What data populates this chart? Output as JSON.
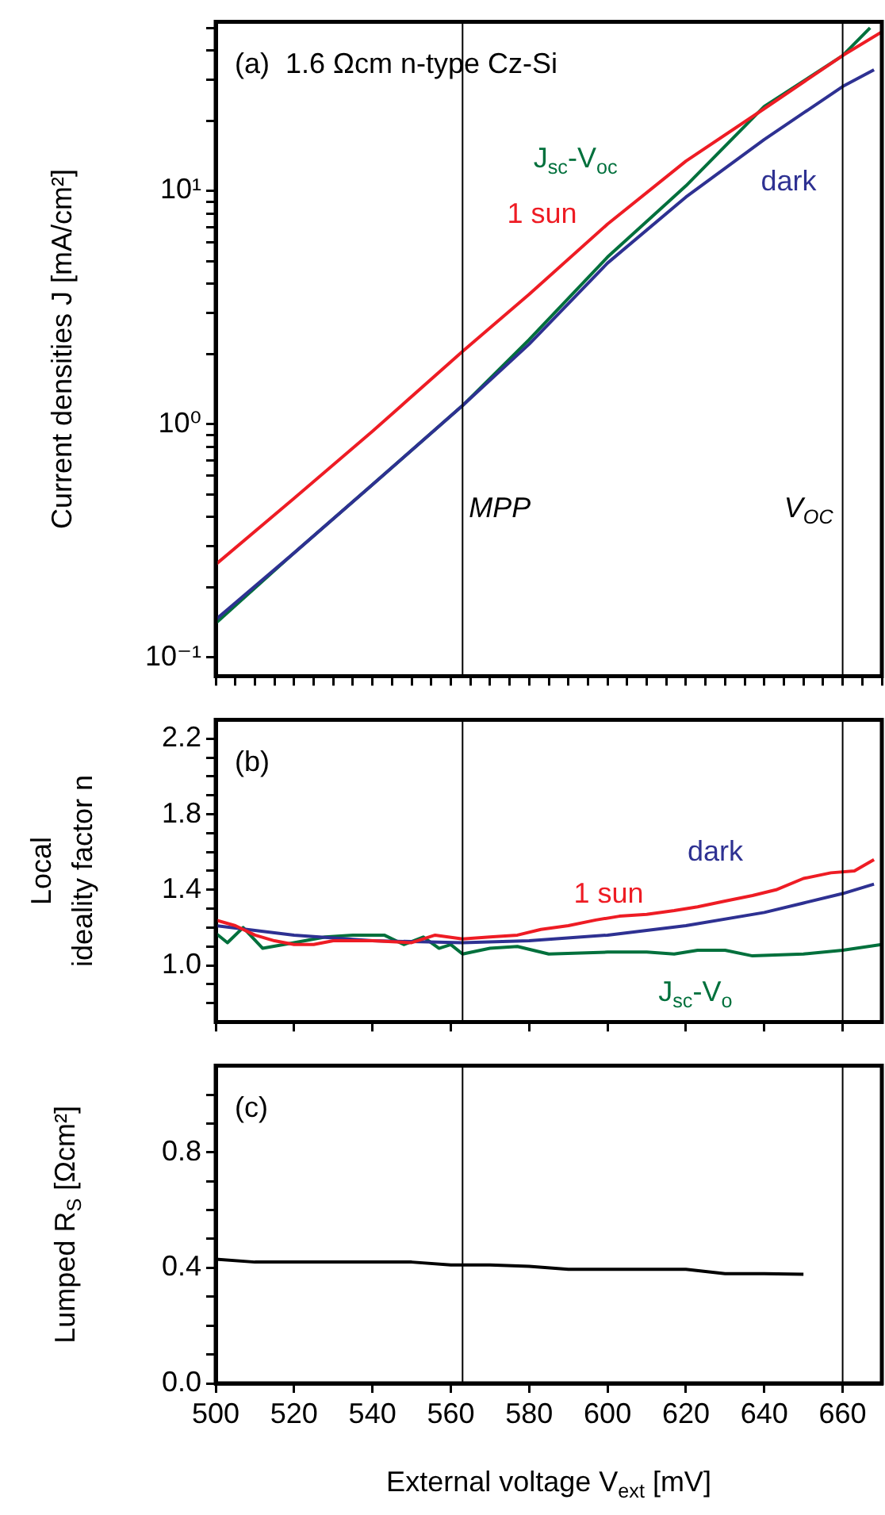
{
  "chart_data": [
    {
      "type": "line",
      "ylabel": "Current densities J [mA/cm²]",
      "annotations": [
        "(a)  1.6 Ωcm n-type Cz-Si"
      ],
      "xlim": [
        500,
        670
      ],
      "xticks": [
        500,
        {
          "value": 505,
          "label": null
        },
        {
          "value": 510,
          "label": null
        },
        {
          "value": 515,
          "label": null
        },
        520,
        {
          "value": 525,
          "label": null
        },
        {
          "value": 530,
          "label": null
        },
        {
          "value": 535,
          "label": null
        },
        540,
        {
          "value": 545,
          "label": null
        },
        {
          "value": 550,
          "label": null
        },
        {
          "value": 555,
          "label": null
        },
        560,
        {
          "value": 565,
          "label": null
        },
        {
          "value": 570,
          "label": null
        },
        {
          "value": 575,
          "label": null
        },
        580,
        {
          "value": 585,
          "label": null
        },
        {
          "value": 590,
          "label": null
        },
        {
          "value": 595,
          "label": null
        },
        600,
        {
          "value": 605,
          "label": null
        },
        {
          "value": 610,
          "label": null
        },
        {
          "value": 615,
          "label": null
        },
        620,
        {
          "value": 625,
          "label": null
        },
        {
          "value": 630,
          "label": null
        },
        {
          "value": 635,
          "label": null
        },
        640,
        {
          "value": 645,
          "label": null
        },
        {
          "value": 650,
          "label": null
        },
        {
          "value": 655,
          "label": null
        },
        660,
        {
          "value": 665,
          "label": null
        },
        {
          "value": 670,
          "label": null
        }
      ],
      "ylim": [
        0.083,
        53
      ],
      "yticks": [
        {
          "value": 0.1,
          "label": "10⁻¹"
        },
        {
          "value": 0.2,
          "label": null
        },
        {
          "value": 0.3,
          "label": null
        },
        {
          "value": 0.4,
          "label": null
        },
        {
          "value": 0.5,
          "label": null
        },
        {
          "value": 0.6,
          "label": null
        },
        {
          "value": 0.7,
          "label": null
        },
        {
          "value": 0.8,
          "label": null
        },
        {
          "value": 0.9,
          "label": null
        },
        {
          "value": 1,
          "label": "10⁰"
        },
        {
          "value": 2,
          "label": null
        },
        {
          "value": 3,
          "label": null
        },
        {
          "value": 4,
          "label": null
        },
        {
          "value": 5,
          "label": null
        },
        {
          "value": 6,
          "label": null
        },
        {
          "value": 7,
          "label": null
        },
        {
          "value": 8,
          "label": null
        },
        {
          "value": 9,
          "label": null
        },
        {
          "value": 10,
          "label": "10¹"
        },
        {
          "value": 20,
          "label": null
        },
        {
          "value": 30,
          "label": null
        },
        {
          "value": 40,
          "label": null
        },
        {
          "value": 50,
          "label": null
        }
      ],
      "log": "y",
      "tick_labels": "y",
      "grid": false,
      "legend": false,
      "marker": "none",
      "line_style": "solid",
      "ref_lines": [
        {
          "axis": "x",
          "value": 563,
          "label": "MPP",
          "color": "#000000"
        },
        {
          "axis": "x",
          "value": 660,
          "label": "V$_{OC}$",
          "color": "#000000"
        }
      ],
      "series": [
        {
          "name": "1 sun",
          "color": "#ee1c24",
          "x": [
            500,
            520,
            540,
            563,
            580,
            600,
            620,
            640,
            660,
            670
          ],
          "values": [
            0.25,
            0.48,
            0.93,
            2.05,
            3.6,
            7.2,
            13.4,
            22.5,
            38,
            48
          ]
        },
        {
          "name": "dark",
          "color": "#2e3192",
          "x": [
            500,
            520,
            540,
            563,
            580,
            600,
            620,
            640,
            660,
            668
          ],
          "values": [
            0.145,
            0.28,
            0.55,
            1.2,
            2.2,
            4.9,
            9.4,
            16.6,
            28,
            33
          ]
        },
        {
          "name": "J$_{sc}$-V$_{oc}$",
          "color": "#00703c",
          "x": [
            500,
            520,
            540,
            563,
            580,
            600,
            620,
            640,
            660,
            667
          ],
          "values": [
            0.14,
            0.28,
            0.55,
            1.2,
            2.3,
            5.2,
            10.5,
            23,
            38,
            50
          ]
        }
      ]
    },
    {
      "type": "line",
      "ylabel": "Local ideality factor n",
      "annotations": [
        "(b)"
      ],
      "xlim": [
        500,
        670
      ],
      "xticks": [
        500,
        520,
        540,
        560,
        580,
        600,
        620,
        640,
        660
      ],
      "ylim": [
        0.7,
        2.3
      ],
      "yticks": [
        {
          "value": 0.8,
          "label": null
        },
        {
          "value": 0.9,
          "label": null
        },
        {
          "value": 1,
          "label": "1.0"
        },
        {
          "value": 1.1,
          "label": null
        },
        {
          "value": 1.2,
          "label": null
        },
        {
          "value": 1.3,
          "label": null
        },
        1.4,
        {
          "value": 1.5,
          "label": null
        },
        {
          "value": 1.6,
          "label": null
        },
        {
          "value": 1.7,
          "label": null
        },
        1.8,
        {
          "value": 1.9,
          "label": null
        },
        {
          "value": 2,
          "label": null
        },
        {
          "value": 2.1,
          "label": null
        },
        2.2
      ],
      "tick_labels": "y",
      "grid": false,
      "legend": false,
      "marker": "none",
      "line_style": "solid",
      "ref_lines": [
        {
          "axis": "x",
          "value": 563,
          "color": "#000000"
        },
        {
          "axis": "x",
          "value": 660,
          "color": "#000000"
        }
      ],
      "series": [
        {
          "name": "1 sun",
          "color": "#ee1c24",
          "x": [
            500,
            505,
            510,
            515,
            520,
            525,
            530,
            540,
            550,
            556,
            563,
            570,
            577,
            583,
            590,
            597,
            603,
            610,
            617,
            623,
            630,
            637,
            643,
            650,
            657,
            663,
            668
          ],
          "values": [
            1.24,
            1.21,
            1.16,
            1.13,
            1.11,
            1.11,
            1.13,
            1.13,
            1.12,
            1.16,
            1.14,
            1.15,
            1.16,
            1.19,
            1.21,
            1.24,
            1.26,
            1.27,
            1.29,
            1.31,
            1.34,
            1.37,
            1.4,
            1.46,
            1.49,
            1.5,
            1.56
          ]
        },
        {
          "name": "dark",
          "color": "#2e3192",
          "x": [
            500,
            520,
            540,
            563,
            580,
            600,
            620,
            640,
            650,
            660,
            668
          ],
          "values": [
            1.21,
            1.16,
            1.13,
            1.12,
            1.13,
            1.16,
            1.21,
            1.28,
            1.33,
            1.38,
            1.43
          ]
        },
        {
          "name": "J$_{sc}$-V$_{o}$",
          "color": "#00703c",
          "x": [
            500,
            503,
            507,
            512,
            520,
            528,
            535,
            543,
            548,
            553,
            557,
            560,
            563,
            570,
            577,
            585,
            600,
            610,
            617,
            623,
            630,
            637,
            650,
            660,
            670
          ],
          "values": [
            1.17,
            1.12,
            1.2,
            1.09,
            1.12,
            1.15,
            1.16,
            1.16,
            1.11,
            1.15,
            1.09,
            1.11,
            1.06,
            1.09,
            1.1,
            1.06,
            1.07,
            1.07,
            1.06,
            1.08,
            1.08,
            1.05,
            1.06,
            1.08,
            1.11
          ]
        }
      ]
    },
    {
      "type": "line",
      "xlabel": "External voltage V$_{ext}$ [mV]",
      "ylabel": "Lumped R$_{S}$ [Ωcm²]",
      "annotations": [
        "(c)"
      ],
      "xlim": [
        500,
        670
      ],
      "xticks": [
        500,
        520,
        540,
        560,
        580,
        600,
        620,
        640,
        660
      ],
      "ylim": [
        0,
        1.1
      ],
      "yticks": [
        {
          "value": 0,
          "label": "0.0"
        },
        {
          "value": 0.1,
          "label": null
        },
        {
          "value": 0.2,
          "label": null
        },
        {
          "value": 0.3,
          "label": null
        },
        0.4,
        {
          "value": 0.5,
          "label": null
        },
        {
          "value": 0.6,
          "label": null
        },
        {
          "value": 0.7,
          "label": null
        },
        0.8,
        {
          "value": 0.9,
          "label": null
        },
        {
          "value": 1,
          "label": null
        }
      ],
      "grid": false,
      "legend": false,
      "marker": "none",
      "line_style": "solid",
      "ref_lines": [
        {
          "axis": "x",
          "value": 563,
          "color": "#000000"
        },
        {
          "axis": "x",
          "value": 660,
          "color": "#000000"
        }
      ],
      "series": [
        {
          "color": "#000000",
          "x": [
            500,
            510,
            520,
            530,
            540,
            550,
            560,
            570,
            580,
            590,
            600,
            610,
            620,
            630,
            640,
            650
          ],
          "values": [
            0.43,
            0.42,
            0.42,
            0.42,
            0.42,
            0.42,
            0.41,
            0.41,
            0.405,
            0.395,
            0.395,
            0.395,
            0.395,
            0.38,
            0.38,
            0.378
          ]
        }
      ]
    }
  ]
}
